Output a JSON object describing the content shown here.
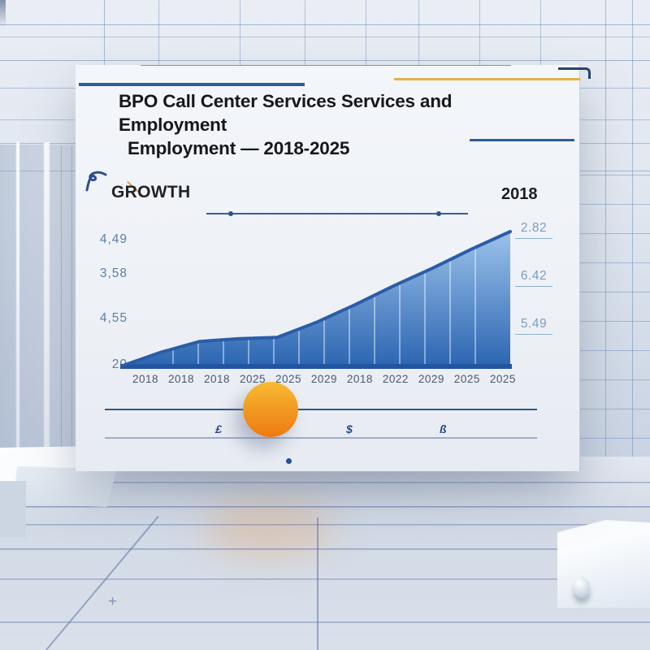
{
  "title": {
    "line1": "BPO Call Center Services Services and Employment",
    "line2": "Employment — 2018-2025"
  },
  "labels": {
    "growth": "GROWTH",
    "year": "2018",
    "floor_plus": "+"
  },
  "chart_data": {
    "type": "area",
    "title": "BPO Call Center Services Services and Employment Employment — 2018-2025",
    "categories": [
      "2018",
      "2018",
      "2018",
      "2025",
      "2025",
      "2029",
      "2018",
      "2022",
      "2029",
      "2025",
      "2025"
    ],
    "values": [
      1,
      11,
      19,
      21,
      22,
      33,
      46,
      60,
      73,
      87,
      100
    ],
    "ylim": [
      0,
      100
    ],
    "y_axis_tick_labels": [
      "4,49",
      "3,58",
      "4,55",
      "20"
    ],
    "right_value_labels": [
      "2.82",
      "6.42",
      "5.49"
    ],
    "grid": true,
    "legend": false,
    "series_color": "#2b5ca8",
    "baseline_color": "#23549f",
    "fill_gradient": [
      "#9cc2ea",
      "#2a64b1"
    ]
  },
  "footer": {
    "glyphs": [
      "£",
      "$",
      "ß"
    ]
  },
  "colors": {
    "accent_blue": "#2d5d99",
    "accent_yellow": "#e2b344",
    "orange_top": "#f9bb33",
    "orange_bottom": "#ed7a12"
  }
}
